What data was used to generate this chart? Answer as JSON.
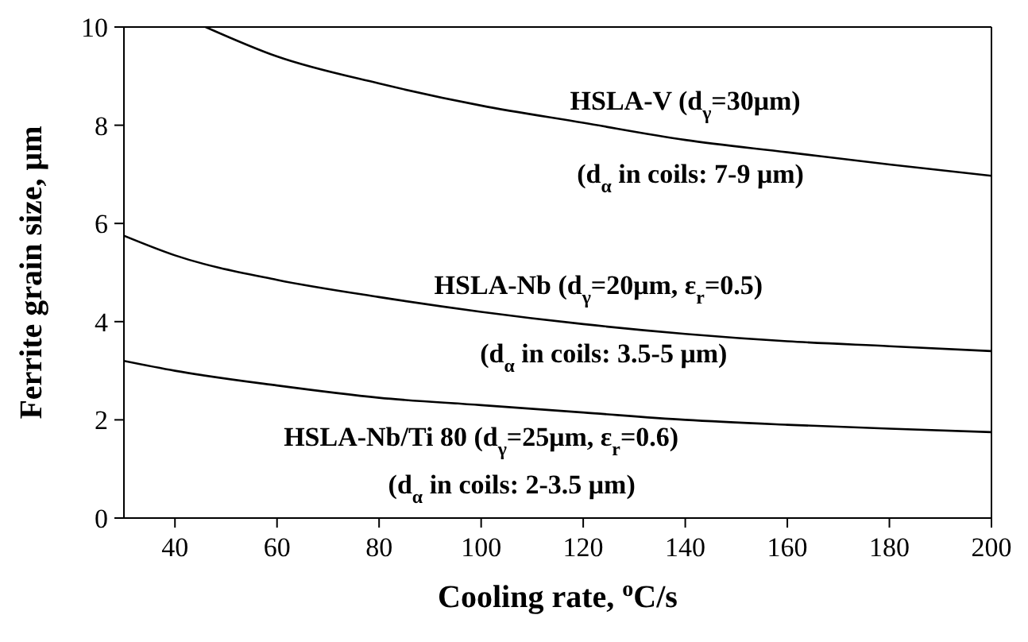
{
  "chart_data": {
    "type": "line",
    "xlabel": "Cooling rate, $^{o}$C/s",
    "ylabel": "Ferrite grain size, μm",
    "xlim": [
      30,
      200
    ],
    "xticks": [
      40,
      60,
      80,
      100,
      120,
      140,
      160,
      180,
      200
    ],
    "ylim": [
      0,
      10
    ],
    "yticks": [
      0,
      2,
      4,
      6,
      8,
      10
    ],
    "grid": false,
    "legend": false,
    "marker": "none",
    "line_style": "solid",
    "series": [
      {
        "name": "HSLA-V (d$_{γ}$=30μm)",
        "color": "#000000",
        "x": [
          46,
          60,
          80,
          100,
          120,
          140,
          160,
          180,
          200
        ],
        "values": [
          10,
          9.4,
          8.85,
          8.4,
          8.05,
          7.7,
          7.45,
          7.2,
          6.97
        ]
      },
      {
        "name": "HSLA-Nb (d$_{γ}$=20μm, ε$_{r}$=0.5)",
        "color": "#000000",
        "x": [
          30,
          40,
          60,
          80,
          100,
          120,
          140,
          160,
          180,
          200
        ],
        "values": [
          5.75,
          5.35,
          4.85,
          4.5,
          4.2,
          3.95,
          3.75,
          3.6,
          3.5,
          3.4
        ]
      },
      {
        "name": "HSLA-Nb/Ti 80 (d$_{γ}$=25μm, ε$_{r}$=0.6)",
        "color": "#000000",
        "x": [
          30,
          40,
          60,
          80,
          100,
          120,
          140,
          160,
          180,
          200
        ],
        "values": [
          3.2,
          3.0,
          2.7,
          2.45,
          2.3,
          2.15,
          2.0,
          1.9,
          1.82,
          1.75
        ]
      }
    ],
    "annotations": [
      "(d$_{α}$ in coils: 7-9 μm)",
      "(d$_{α}$ in coils: 3.5-5 μm)",
      "(d$_{α}$ in coils: 2-3.5 μm)"
    ]
  }
}
